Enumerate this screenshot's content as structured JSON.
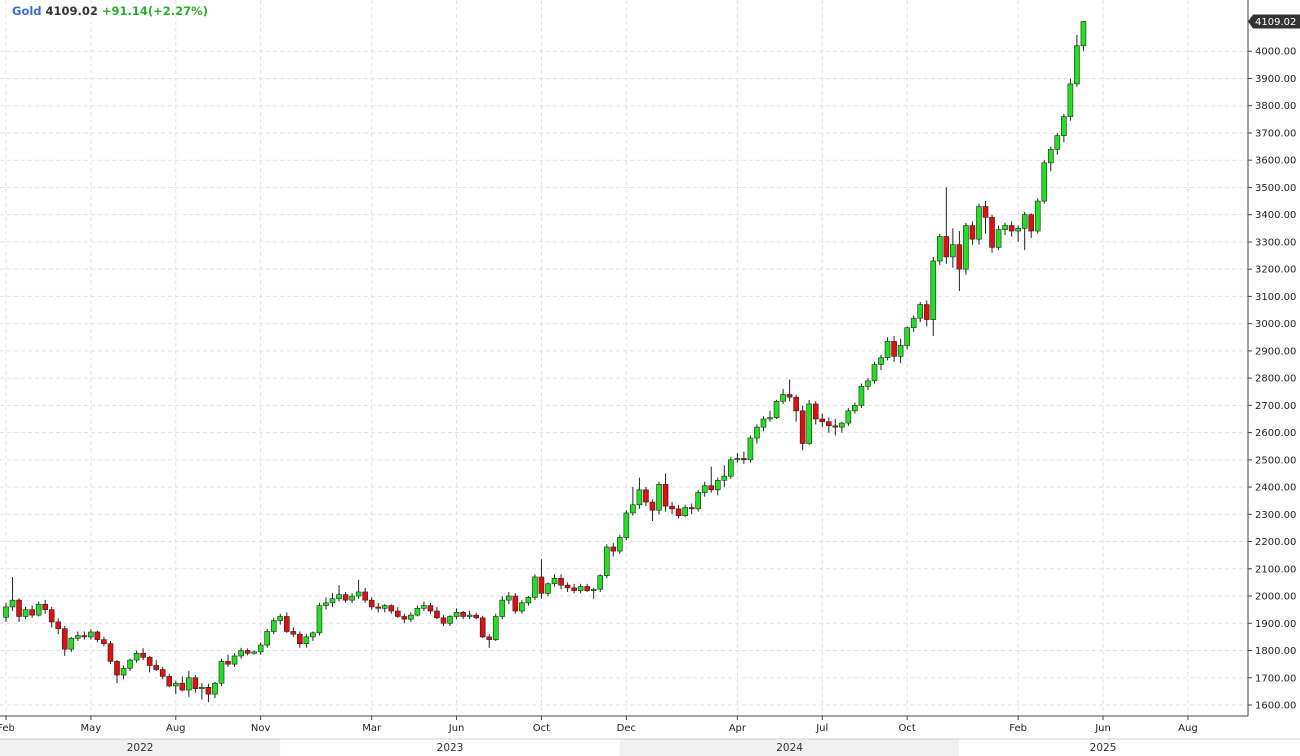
{
  "header": {
    "symbol": "Gold",
    "last": "4109.02",
    "change": "+91.14(+2.27%)"
  },
  "colors": {
    "up": "#22e022",
    "down": "#e01010",
    "wick": "#222222",
    "grid": "#e2e2e2",
    "axis": "#444444",
    "year_band_a": "#f0f0f0",
    "year_band_b": "#ffffff",
    "last_tag_bg": "#333333",
    "last_tag_fg": "#ffffff"
  },
  "chart_data": {
    "type": "candlestick",
    "interval": "weekly",
    "title": "",
    "xlabel": "",
    "ylabel": "",
    "ylim": [
      1580,
      4140
    ],
    "y_ticks": [
      1600,
      1700,
      1800,
      1900,
      2000,
      2100,
      2200,
      2300,
      2400,
      2500,
      2600,
      2700,
      2800,
      2900,
      3000,
      3100,
      3200,
      3300,
      3400,
      3500,
      3600,
      3700,
      3800,
      3900,
      4000
    ],
    "y_tick_labels": [
      "1600.00",
      "1700.00",
      "1800.00",
      "1900.00",
      "2000.00",
      "2100.00",
      "2200.00",
      "2300.00",
      "2400.00",
      "2500.00",
      "2600.00",
      "2700.00",
      "2800.00",
      "2900.00",
      "3000.00",
      "3100.00",
      "3200.00",
      "3300.00",
      "3400.00",
      "3500.00",
      "3600.00",
      "3700.00",
      "3800.00",
      "3900.00",
      "4000.00"
    ],
    "last_price_label": "4109.02",
    "last_price": 4109.02,
    "x_ticks": [
      {
        "label": "Feb",
        "index": 0
      },
      {
        "label": "May",
        "index": 13
      },
      {
        "label": "Aug",
        "index": 26
      },
      {
        "label": "Nov",
        "index": 39
      },
      {
        "label": "Mar",
        "index": 56
      },
      {
        "label": "Jun",
        "index": 69
      },
      {
        "label": "Oct",
        "index": 82
      },
      {
        "label": "Dec",
        "index": 95
      },
      {
        "label": "Apr",
        "index": 112
      },
      {
        "label": "Jul",
        "index": 125
      },
      {
        "label": "Oct",
        "index": 138
      },
      {
        "label": "Feb",
        "index": 155
      },
      {
        "label": "Jun",
        "index": 168
      },
      {
        "label": "Aug",
        "index": 181
      }
    ],
    "year_bands": [
      {
        "label": "2022",
        "start": -2,
        "end": 42
      },
      {
        "label": "2023",
        "start": 42,
        "end": 94
      },
      {
        "label": "2024",
        "start": 94,
        "end": 146
      },
      {
        "label": "2025",
        "start": 146,
        "end": 190
      }
    ],
    "gridlines": true,
    "candles": [
      [
        1922,
        1975,
        1905,
        1960
      ],
      [
        1960,
        2070,
        1945,
        1985
      ],
      [
        1985,
        1992,
        1905,
        1925
      ],
      [
        1925,
        1960,
        1915,
        1950
      ],
      [
        1950,
        1965,
        1920,
        1930
      ],
      [
        1930,
        1980,
        1925,
        1970
      ],
      [
        1970,
        1985,
        1935,
        1950
      ],
      [
        1950,
        1960,
        1885,
        1905
      ],
      [
        1905,
        1918,
        1860,
        1880
      ],
      [
        1880,
        1890,
        1780,
        1805
      ],
      [
        1805,
        1850,
        1795,
        1845
      ],
      [
        1845,
        1870,
        1835,
        1855
      ],
      [
        1855,
        1870,
        1840,
        1850
      ],
      [
        1850,
        1878,
        1840,
        1868
      ],
      [
        1868,
        1872,
        1830,
        1840
      ],
      [
        1840,
        1850,
        1815,
        1825
      ],
      [
        1825,
        1835,
        1750,
        1760
      ],
      [
        1760,
        1765,
        1680,
        1710
      ],
      [
        1710,
        1745,
        1695,
        1735
      ],
      [
        1735,
        1770,
        1725,
        1765
      ],
      [
        1765,
        1800,
        1755,
        1790
      ],
      [
        1790,
        1808,
        1765,
        1775
      ],
      [
        1775,
        1780,
        1720,
        1745
      ],
      [
        1745,
        1765,
        1725,
        1730
      ],
      [
        1730,
        1740,
        1695,
        1705
      ],
      [
        1705,
        1715,
        1665,
        1670
      ],
      [
        1670,
        1690,
        1640,
        1680
      ],
      [
        1680,
        1705,
        1650,
        1655
      ],
      [
        1655,
        1725,
        1630,
        1700
      ],
      [
        1700,
        1710,
        1645,
        1660
      ],
      [
        1660,
        1680,
        1620,
        1665
      ],
      [
        1665,
        1678,
        1610,
        1640
      ],
      [
        1640,
        1685,
        1625,
        1680
      ],
      [
        1680,
        1770,
        1670,
        1760
      ],
      [
        1760,
        1785,
        1740,
        1750
      ],
      [
        1750,
        1790,
        1740,
        1780
      ],
      [
        1780,
        1810,
        1770,
        1800
      ],
      [
        1800,
        1808,
        1782,
        1790
      ],
      [
        1790,
        1800,
        1785,
        1795
      ],
      [
        1795,
        1830,
        1785,
        1820
      ],
      [
        1820,
        1880,
        1810,
        1870
      ],
      [
        1870,
        1920,
        1860,
        1910
      ],
      [
        1910,
        1935,
        1895,
        1925
      ],
      [
        1925,
        1940,
        1865,
        1870
      ],
      [
        1870,
        1885,
        1850,
        1860
      ],
      [
        1860,
        1870,
        1810,
        1825
      ],
      [
        1825,
        1860,
        1810,
        1850
      ],
      [
        1850,
        1870,
        1835,
        1865
      ],
      [
        1865,
        1975,
        1855,
        1965
      ],
      [
        1965,
        1995,
        1950,
        1975
      ],
      [
        1975,
        2010,
        1960,
        1990
      ],
      [
        1990,
        2040,
        1980,
        2005
      ],
      [
        2005,
        2015,
        1975,
        1985
      ],
      [
        1985,
        2010,
        1975,
        2000
      ],
      [
        2000,
        2060,
        1990,
        2015
      ],
      [
        2015,
        2030,
        1975,
        1985
      ],
      [
        1985,
        1995,
        1950,
        1960
      ],
      [
        1960,
        1975,
        1940,
        1955
      ],
      [
        1955,
        1970,
        1940,
        1965
      ],
      [
        1965,
        1970,
        1935,
        1945
      ],
      [
        1945,
        1960,
        1920,
        1925
      ],
      [
        1925,
        1935,
        1900,
        1915
      ],
      [
        1915,
        1940,
        1905,
        1930
      ],
      [
        1930,
        1965,
        1925,
        1955
      ],
      [
        1955,
        1980,
        1945,
        1965
      ],
      [
        1965,
        1975,
        1935,
        1945
      ],
      [
        1945,
        1960,
        1915,
        1920
      ],
      [
        1920,
        1930,
        1890,
        1900
      ],
      [
        1900,
        1930,
        1890,
        1925
      ],
      [
        1925,
        1955,
        1915,
        1940
      ],
      [
        1940,
        1945,
        1915,
        1925
      ],
      [
        1925,
        1945,
        1915,
        1930
      ],
      [
        1930,
        1938,
        1915,
        1920
      ],
      [
        1920,
        1928,
        1845,
        1850
      ],
      [
        1850,
        1860,
        1810,
        1840
      ],
      [
        1840,
        1935,
        1835,
        1925
      ],
      [
        1925,
        2000,
        1915,
        1985
      ],
      [
        1985,
        2015,
        1970,
        2000
      ],
      [
        2000,
        2010,
        1935,
        1945
      ],
      [
        1945,
        1985,
        1935,
        1975
      ],
      [
        1975,
        2000,
        1965,
        1995
      ],
      [
        1995,
        2080,
        1985,
        2070
      ],
      [
        2070,
        2135,
        1990,
        2010
      ],
      [
        2010,
        2050,
        2000,
        2045
      ],
      [
        2045,
        2080,
        2035,
        2065
      ],
      [
        2065,
        2080,
        2025,
        2040
      ],
      [
        2040,
        2050,
        2015,
        2030
      ],
      [
        2030,
        2045,
        2010,
        2020
      ],
      [
        2020,
        2045,
        2010,
        2035
      ],
      [
        2035,
        2045,
        2015,
        2020
      ],
      [
        2020,
        2030,
        1990,
        2025
      ],
      [
        2025,
        2080,
        2015,
        2075
      ],
      [
        2075,
        2190,
        2065,
        2180
      ],
      [
        2180,
        2195,
        2145,
        2165
      ],
      [
        2165,
        2225,
        2155,
        2215
      ],
      [
        2215,
        2315,
        2205,
        2305
      ],
      [
        2305,
        2400,
        2295,
        2335
      ],
      [
        2335,
        2435,
        2320,
        2390
      ],
      [
        2390,
        2400,
        2330,
        2345
      ],
      [
        2345,
        2355,
        2275,
        2315
      ],
      [
        2315,
        2420,
        2300,
        2410
      ],
      [
        2410,
        2450,
        2310,
        2330
      ],
      [
        2330,
        2345,
        2300,
        2320
      ],
      [
        2320,
        2335,
        2285,
        2295
      ],
      [
        2295,
        2335,
        2290,
        2325
      ],
      [
        2325,
        2340,
        2300,
        2320
      ],
      [
        2320,
        2390,
        2310,
        2380
      ],
      [
        2380,
        2420,
        2365,
        2405
      ],
      [
        2405,
        2475,
        2380,
        2390
      ],
      [
        2390,
        2435,
        2370,
        2425
      ],
      [
        2425,
        2480,
        2400,
        2440
      ],
      [
        2440,
        2510,
        2430,
        2500
      ],
      [
        2500,
        2525,
        2490,
        2505
      ],
      [
        2505,
        2530,
        2485,
        2500
      ],
      [
        2500,
        2590,
        2490,
        2580
      ],
      [
        2580,
        2630,
        2560,
        2620
      ],
      [
        2620,
        2660,
        2605,
        2650
      ],
      [
        2650,
        2680,
        2640,
        2655
      ],
      [
        2655,
        2720,
        2650,
        2715
      ],
      [
        2715,
        2760,
        2705,
        2740
      ],
      [
        2740,
        2795,
        2715,
        2730
      ],
      [
        2730,
        2740,
        2640,
        2680
      ],
      [
        2680,
        2700,
        2535,
        2560
      ],
      [
        2560,
        2720,
        2555,
        2705
      ],
      [
        2705,
        2715,
        2630,
        2650
      ],
      [
        2650,
        2670,
        2620,
        2640
      ],
      [
        2640,
        2655,
        2600,
        2625
      ],
      [
        2625,
        2650,
        2590,
        2620
      ],
      [
        2620,
        2640,
        2600,
        2635
      ],
      [
        2635,
        2690,
        2625,
        2680
      ],
      [
        2680,
        2710,
        2670,
        2700
      ],
      [
        2700,
        2780,
        2690,
        2770
      ],
      [
        2770,
        2800,
        2755,
        2790
      ],
      [
        2790,
        2860,
        2780,
        2850
      ],
      [
        2850,
        2885,
        2830,
        2875
      ],
      [
        2875,
        2950,
        2865,
        2935
      ],
      [
        2935,
        2955,
        2860,
        2880
      ],
      [
        2880,
        2945,
        2855,
        2920
      ],
      [
        2920,
        2990,
        2905,
        2985
      ],
      [
        2985,
        3030,
        2970,
        3020
      ],
      [
        3020,
        3080,
        3005,
        3070
      ],
      [
        3070,
        3085,
        2990,
        3015
      ],
      [
        3015,
        3245,
        2955,
        3230
      ],
      [
        3230,
        3330,
        3215,
        3320
      ],
      [
        3320,
        3500,
        3220,
        3245
      ],
      [
        3245,
        3350,
        3205,
        3290
      ],
      [
        3290,
        3340,
        3120,
        3200
      ],
      [
        3200,
        3370,
        3180,
        3360
      ],
      [
        3360,
        3375,
        3290,
        3310
      ],
      [
        3310,
        3440,
        3290,
        3430
      ],
      [
        3430,
        3450,
        3330,
        3390
      ],
      [
        3390,
        3400,
        3260,
        3280
      ],
      [
        3280,
        3360,
        3270,
        3345
      ],
      [
        3345,
        3370,
        3325,
        3360
      ],
      [
        3360,
        3375,
        3320,
        3340
      ],
      [
        3340,
        3360,
        3300,
        3350
      ],
      [
        3350,
        3410,
        3270,
        3400
      ],
      [
        3400,
        3405,
        3315,
        3340
      ],
      [
        3340,
        3460,
        3330,
        3450
      ],
      [
        3450,
        3600,
        3440,
        3590
      ],
      [
        3590,
        3650,
        3560,
        3640
      ],
      [
        3640,
        3700,
        3620,
        3690
      ],
      [
        3690,
        3770,
        3665,
        3760
      ],
      [
        3760,
        3900,
        3745,
        3880
      ],
      [
        3880,
        4060,
        3870,
        4020
      ],
      [
        4020,
        4110,
        4000,
        4109.02
      ]
    ]
  }
}
